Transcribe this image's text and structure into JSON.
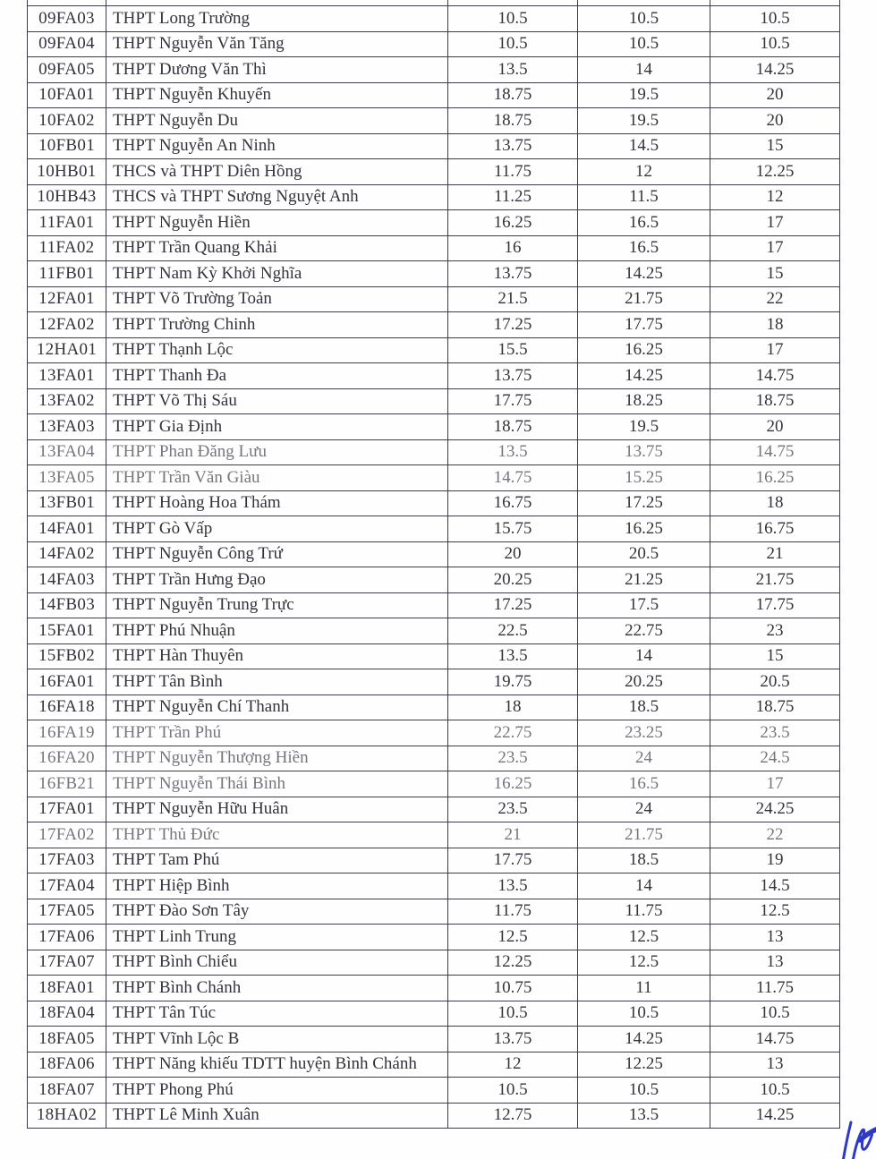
{
  "document": {
    "kind": "scanned admission score table page",
    "ink_color": "#33333c",
    "faded_ink_color": "#75757f",
    "border_color": "#3d3d47",
    "pen_mark_color": "#2e3ac2",
    "pen_mark_icon": "handwritten-blue-pen-signature-stroke"
  },
  "table": {
    "columns": [
      {
        "key": "code"
      },
      {
        "key": "name"
      },
      {
        "key": "score1"
      },
      {
        "key": "score2"
      },
      {
        "key": "score3"
      }
    ],
    "rows": [
      {
        "code": "09FA03",
        "name": "THPT Long Trường",
        "score1": "10.5",
        "score2": "10.5",
        "score3": "10.5"
      },
      {
        "code": "09FA04",
        "name": "THPT Nguyễn Văn Tăng",
        "score1": "10.5",
        "score2": "10.5",
        "score3": "10.5"
      },
      {
        "code": "09FA05",
        "name": "THPT Dương Văn Thì",
        "score1": "13.5",
        "score2": "14",
        "score3": "14.25"
      },
      {
        "code": "10FA01",
        "name": "THPT Nguyễn Khuyến",
        "score1": "18.75",
        "score2": "19.5",
        "score3": "20"
      },
      {
        "code": "10FA02",
        "name": "THPT Nguyễn Du",
        "score1": "18.75",
        "score2": "19.5",
        "score3": "20"
      },
      {
        "code": "10FB01",
        "name": "THPT Nguyễn An Ninh",
        "score1": "13.75",
        "score2": "14.5",
        "score3": "15"
      },
      {
        "code": "10HB01",
        "name": "THCS và THPT Diên Hồng",
        "score1": "11.75",
        "score2": "12",
        "score3": "12.25"
      },
      {
        "code": "10HB43",
        "name": "THCS và THPT Sương Nguyệt Anh",
        "score1": "11.25",
        "score2": "11.5",
        "score3": "12"
      },
      {
        "code": "11FA01",
        "name": "THPT Nguyễn Hiền",
        "score1": "16.25",
        "score2": "16.5",
        "score3": "17"
      },
      {
        "code": "11FA02",
        "name": "THPT Trần Quang Khải",
        "score1": "16",
        "score2": "16.5",
        "score3": "17"
      },
      {
        "code": "11FB01",
        "name": "THPT Nam Kỳ Khởi Nghĩa",
        "score1": "13.75",
        "score2": "14.25",
        "score3": "15"
      },
      {
        "code": "12FA01",
        "name": "THPT Võ Trường Toản",
        "score1": "21.5",
        "score2": "21.75",
        "score3": "22"
      },
      {
        "code": "12FA02",
        "name": "THPT Trường Chinh",
        "score1": "17.25",
        "score2": "17.75",
        "score3": "18"
      },
      {
        "code": "12HA01",
        "name": "THPT Thạnh Lộc",
        "score1": "15.5",
        "score2": "16.25",
        "score3": "17"
      },
      {
        "code": "13FA01",
        "name": "THPT Thanh Đa",
        "score1": "13.75",
        "score2": "14.25",
        "score3": "14.75"
      },
      {
        "code": "13FA02",
        "name": "THPT Võ Thị Sáu",
        "score1": "17.75",
        "score2": "18.25",
        "score3": "18.75"
      },
      {
        "code": "13FA03",
        "name": "THPT Gia Định",
        "score1": "18.75",
        "score2": "19.5",
        "score3": "20"
      },
      {
        "code": "13FA04",
        "name": "THPT Phan Đăng Lưu",
        "score1": "13.5",
        "score2": "13.75",
        "score3": "14.75",
        "faded": true
      },
      {
        "code": "13FA05",
        "name": "THPT Trần Văn Giàu",
        "score1": "14.75",
        "score2": "15.25",
        "score3": "16.25",
        "faded": true
      },
      {
        "code": "13FB01",
        "name": "THPT Hoàng Hoa Thám",
        "score1": "16.75",
        "score2": "17.25",
        "score3": "18"
      },
      {
        "code": "14FA01",
        "name": "THPT Gò Vấp",
        "score1": "15.75",
        "score2": "16.25",
        "score3": "16.75"
      },
      {
        "code": "14FA02",
        "name": "THPT Nguyễn Công Trứ",
        "score1": "20",
        "score2": "20.5",
        "score3": "21"
      },
      {
        "code": "14FA03",
        "name": "THPT Trần Hưng Đạo",
        "score1": "20.25",
        "score2": "21.25",
        "score3": "21.75"
      },
      {
        "code": "14FB03",
        "name": "THPT Nguyễn Trung Trực",
        "score1": "17.25",
        "score2": "17.5",
        "score3": "17.75"
      },
      {
        "code": "15FA01",
        "name": "THPT Phú Nhuận",
        "score1": "22.5",
        "score2": "22.75",
        "score3": "23"
      },
      {
        "code": "15FB02",
        "name": "THPT Hàn Thuyên",
        "score1": "13.5",
        "score2": "14",
        "score3": "15"
      },
      {
        "code": "16FA01",
        "name": "THPT Tân Bình",
        "score1": "19.75",
        "score2": "20.25",
        "score3": "20.5"
      },
      {
        "code": "16FA18",
        "name": "THPT Nguyễn Chí Thanh",
        "score1": "18",
        "score2": "18.5",
        "score3": "18.75"
      },
      {
        "code": "16FA19",
        "name": "THPT Trần Phú",
        "score1": "22.75",
        "score2": "23.25",
        "score3": "23.5",
        "faded": true
      },
      {
        "code": "16FA20",
        "name": "THPT Nguyễn Thượng Hiền",
        "score1": "23.5",
        "score2": "24",
        "score3": "24.5",
        "faded": true
      },
      {
        "code": "16FB21",
        "name": "THPT Nguyễn Thái Bình",
        "score1": "16.25",
        "score2": "16.5",
        "score3": "17",
        "faded": true
      },
      {
        "code": "17FA01",
        "name": "THPT Nguyễn Hữu Huân",
        "score1": "23.5",
        "score2": "24",
        "score3": "24.25"
      },
      {
        "code": "17FA02",
        "name": "THPT Thủ Đức",
        "score1": "21",
        "score2": "21.75",
        "score3": "22",
        "faded": true
      },
      {
        "code": "17FA03",
        "name": "THPT Tam Phú",
        "score1": "17.75",
        "score2": "18.5",
        "score3": "19"
      },
      {
        "code": "17FA04",
        "name": "THPT Hiệp Bình",
        "score1": "13.5",
        "score2": "14",
        "score3": "14.5"
      },
      {
        "code": "17FA05",
        "name": "THPT Đào Sơn Tây",
        "score1": "11.75",
        "score2": "11.75",
        "score3": "12.5"
      },
      {
        "code": "17FA06",
        "name": "THPT Linh Trung",
        "score1": "12.5",
        "score2": "12.5",
        "score3": "13"
      },
      {
        "code": "17FA07",
        "name": "THPT Bình Chiểu",
        "score1": "12.25",
        "score2": "12.5",
        "score3": "13"
      },
      {
        "code": "18FA01",
        "name": "THPT Bình Chánh",
        "score1": "10.75",
        "score2": "11",
        "score3": "11.75"
      },
      {
        "code": "18FA04",
        "name": "THPT Tân Túc",
        "score1": "10.5",
        "score2": "10.5",
        "score3": "10.5"
      },
      {
        "code": "18FA05",
        "name": "THPT Vĩnh Lộc B",
        "score1": "13.75",
        "score2": "14.25",
        "score3": "14.75"
      },
      {
        "code": "18FA06",
        "name": "THPT Năng khiếu TDTT huyện Bình Chánh",
        "score1": "12",
        "score2": "12.25",
        "score3": "13"
      },
      {
        "code": "18FA07",
        "name": "THPT Phong Phú",
        "score1": "10.5",
        "score2": "10.5",
        "score3": "10.5"
      },
      {
        "code": "18HA02",
        "name": "THPT Lê Minh Xuân",
        "score1": "12.75",
        "score2": "13.5",
        "score3": "14.25"
      }
    ]
  }
}
